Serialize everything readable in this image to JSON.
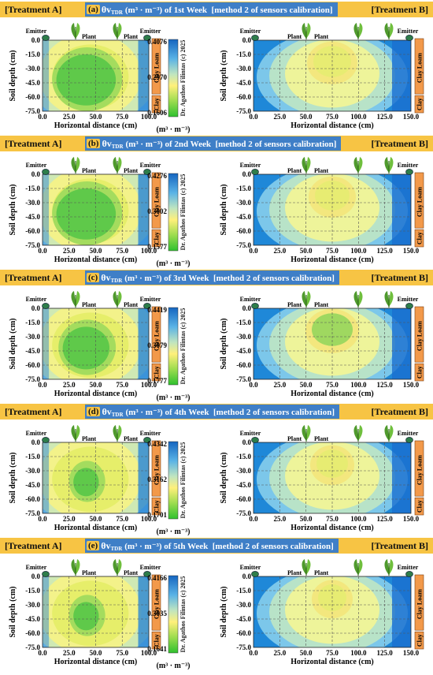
{
  "colors": {
    "header_bg": "#f7c444",
    "header_title_bg": "#3f7fc7",
    "soil_layer_bg": "#f2994a",
    "low_moisture": "#33cc33",
    "mid_moisture": "#ffee66",
    "high_moisture": "#1e6fd9"
  },
  "soil_layers": {
    "loam": "Clay Loam",
    "clay": "Clay"
  },
  "markers": {
    "emitter": "Emitter",
    "plant": "Plant"
  },
  "colorbar": {
    "credit": "Dr. Agathos Filintas (c) 2025",
    "unit": "(m³ · m⁻³)"
  },
  "chart_data": [
    {
      "type": "heatmap",
      "letter": "(a)",
      "title": "θv_TDR (m³ · m⁻³) of 1st Week [method 2 of sensors calibration]",
      "title_main": "θv",
      "title_sub": "TDR",
      "title_rest": "(m³ · m⁻³) of 1st Week  [method 2 of sensors calibration]",
      "left_label": "[Treatment A]",
      "right_label": "[Treatment B]",
      "colorbar_ticks": [
        "0.4076",
        "0.2970",
        "0.1606"
      ],
      "treatment_a": {
        "xlabel": "Horizontal distance (cm)",
        "ylabel": "Soil depth (cm)",
        "xticks": [
          "0.0",
          "25.0",
          "50.0",
          "75.0",
          "100.0"
        ],
        "yticks": [
          "0.0",
          "-15.0",
          "-30.0",
          "-45.0",
          "-60.0",
          "-75.0"
        ],
        "xlim": [
          0,
          100
        ],
        "ylim": [
          -75,
          0
        ]
      },
      "treatment_b": {
        "xlabel": "Horizontal distance (cm)",
        "ylabel": "Soil depth (cm)",
        "xticks": [
          "0.0",
          "25.0",
          "50.0",
          "75.0",
          "100.0",
          "125.0",
          "150.0"
        ],
        "yticks": [
          "0.0",
          "-15.0",
          "-30.0",
          "-45.0",
          "-60.0",
          "-75.0"
        ],
        "xlim": [
          0,
          150
        ],
        "ylim": [
          -75,
          0
        ]
      }
    },
    {
      "type": "heatmap",
      "letter": "(b)",
      "title": "θv_TDR (m³ · m⁻³) of 2nd Week [method 2 of sensors calibration]",
      "title_main": "θv",
      "title_sub": "TDR",
      "title_rest": "(m³ · m⁻³) of 2nd Week  [method 2 of sensors calibration]",
      "left_label": "[Treatment A]",
      "right_label": "[Treatment B]",
      "colorbar_ticks": [
        "0.4276",
        "0.3002",
        "0.1577"
      ],
      "treatment_a": {
        "xlabel": "Horizontal distance (cm)",
        "ylabel": "Soil depth (cm)",
        "xticks": [
          "0.0",
          "25.0",
          "50.0",
          "75.0",
          "100.0"
        ],
        "yticks": [
          "0.0",
          "-15.0",
          "-30.0",
          "-45.0",
          "-60.0",
          "-75.0"
        ],
        "xlim": [
          0,
          100
        ],
        "ylim": [
          -75,
          0
        ]
      },
      "treatment_b": {
        "xlabel": "Horizontal distance (cm)",
        "ylabel": "Soil depth (cm)",
        "xticks": [
          "0.0",
          "25.0",
          "50.0",
          "75.0",
          "100.0",
          "125.0",
          "150.0"
        ],
        "yticks": [
          "0.0",
          "-15.0",
          "-30.0",
          "-45.0",
          "-60.0",
          "-75.0"
        ],
        "xlim": [
          0,
          150
        ],
        "ylim": [
          -75,
          0
        ]
      }
    },
    {
      "type": "heatmap",
      "letter": "(c)",
      "title": "θv_TDR (m³ · m⁻³) of 3rd Week [method 2 of sensors calibration]",
      "title_main": "θv",
      "title_sub": "TDR",
      "title_rest": "(m³ · m⁻³) of 3rd Week  [method 2 of sensors calibration]",
      "left_label": "[Treatment A]",
      "right_label": "[Treatment B]",
      "colorbar_ticks": [
        "0.4419",
        "0.3079",
        "0.1777"
      ],
      "treatment_a": {
        "xlabel": "Horizontal distance (cm)",
        "ylabel": "Soil depth (cm)",
        "xticks": [
          "0.0",
          "25.0",
          "50.0",
          "75.0",
          "100.0"
        ],
        "yticks": [
          "0.0",
          "-15.0",
          "-30.0",
          "-45.0",
          "-60.0",
          "-75.0"
        ],
        "xlim": [
          0,
          100
        ],
        "ylim": [
          -75,
          0
        ]
      },
      "treatment_b": {
        "xlabel": "Horizontal distance (cm)",
        "ylabel": "Soil depth (cm)",
        "xticks": [
          "0.0",
          "25.0",
          "50.0",
          "75.0",
          "100.0",
          "125.0",
          "150.0"
        ],
        "yticks": [
          "0.0",
          "-15.0",
          "-30.0",
          "-45.0",
          "-60.0",
          "-75.0"
        ],
        "xlim": [
          0,
          150
        ],
        "ylim": [
          -75,
          0
        ]
      }
    },
    {
      "type": "heatmap",
      "letter": "(d)",
      "title": "θv_TDR (m³ · m⁻³) of 4th Week [method 2 of sensors calibration]",
      "title_main": "θv",
      "title_sub": "TDR",
      "title_rest": "(m³ · m⁻³) of 4th Week  [method 2 of sensors calibration]",
      "left_label": "[Treatment A]",
      "right_label": "[Treatment B]",
      "colorbar_ticks": [
        "0.4342",
        "0.3162",
        "0.1701"
      ],
      "treatment_a": {
        "xlabel": "Horizontal distance (cm)",
        "ylabel": "Soil depth (cm)",
        "xticks": [
          "0.0",
          "25.0",
          "50.0",
          "75.0",
          "100.0"
        ],
        "yticks": [
          "0.0",
          "-15.0",
          "-30.0",
          "-45.0",
          "-60.0",
          "-75.0"
        ],
        "xlim": [
          0,
          100
        ],
        "ylim": [
          -75,
          0
        ]
      },
      "treatment_b": {
        "xlabel": "Horizontal distance (cm)",
        "ylabel": "Soil depth (cm)",
        "xticks": [
          "0.0",
          "25.0",
          "50.0",
          "75.0",
          "100.0",
          "125.0",
          "150.0"
        ],
        "yticks": [
          "0.0",
          "-15.0",
          "-30.0",
          "-45.0",
          "-60.0",
          "-75.0"
        ],
        "xlim": [
          0,
          150
        ],
        "ylim": [
          -75,
          0
        ]
      }
    },
    {
      "type": "heatmap",
      "letter": "(e)",
      "title": "θv_TDR (m³ · m⁻³) of 5th Week [method 2 of sensors calibration]",
      "title_main": "θv",
      "title_sub": "TDR",
      "title_rest": "(m³ · m⁻³) of 5th Week  [method 2 of sensors calibration]",
      "left_label": "[Treatment A]",
      "right_label": "[Treatment B]",
      "colorbar_ticks": [
        "0.4166",
        "0.3035",
        "0.1641"
      ],
      "treatment_a": {
        "xlabel": "Horizontal distance (cm)",
        "ylabel": "Soil depth (cm)",
        "xticks": [
          "0.0",
          "25.0",
          "50.0",
          "75.0",
          "100.0"
        ],
        "yticks": [
          "0.0",
          "-15.0",
          "-30.0",
          "-45.0",
          "-60.0",
          "-75.0"
        ],
        "xlim": [
          0,
          100
        ],
        "ylim": [
          -75,
          0
        ]
      },
      "treatment_b": {
        "xlabel": "Horizontal distance (cm)",
        "ylabel": "Soil depth (cm)",
        "xticks": [
          "0.0",
          "25.0",
          "50.0",
          "75.0",
          "100.0",
          "125.0",
          "150.0"
        ],
        "yticks": [
          "0.0",
          "-15.0",
          "-30.0",
          "-45.0",
          "-60.0",
          "-75.0"
        ],
        "xlim": [
          0,
          150
        ],
        "ylim": [
          -75,
          0
        ]
      }
    }
  ]
}
